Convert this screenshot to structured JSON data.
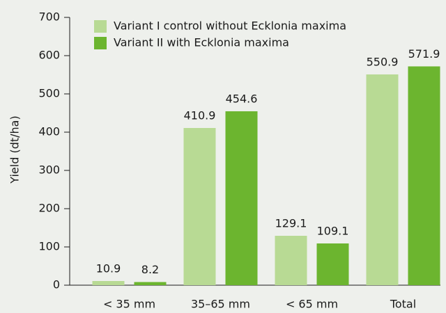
{
  "chart_data": {
    "type": "bar",
    "categories": [
      "< 35 mm",
      "35–65 mm",
      "< 65 mm",
      "Total"
    ],
    "series": [
      {
        "name": "Variant I control without Ecklonia maxima",
        "color": "#b8da94",
        "values": [
          10.9,
          410.9,
          129.1,
          550.9
        ]
      },
      {
        "name": "Variant II with Ecklonia maxima",
        "color": "#6cb52f",
        "values": [
          8.2,
          454.6,
          109.1,
          571.9
        ]
      }
    ],
    "y_label": "Yield (dt/ha)",
    "ylim": [
      0,
      700
    ],
    "yticks": [
      0,
      100,
      200,
      300,
      400,
      500,
      600,
      700
    ],
    "grid": false
  }
}
